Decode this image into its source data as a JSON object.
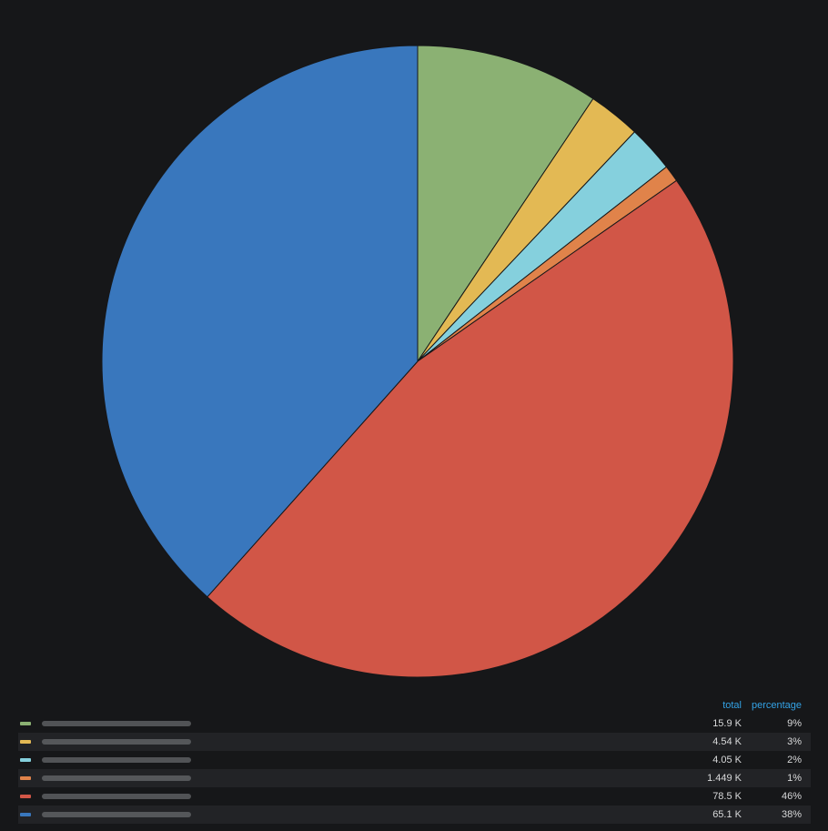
{
  "chart_data": {
    "type": "pie",
    "categories": [
      null,
      null,
      null,
      null,
      null,
      null
    ],
    "values": [
      15900,
      4540,
      4050,
      1449,
      78500,
      65100
    ],
    "value_labels": [
      "15.9 K",
      "4.54 K",
      "4.05 K",
      "1.449 K",
      "78.5 K",
      "65.1 K"
    ],
    "percentages": [
      {
        "value": 9,
        "label": "9%"
      },
      {
        "value": 3,
        "label": "3%"
      },
      {
        "value": 2,
        "label": "2%"
      },
      {
        "value": 1,
        "label": "1%"
      },
      {
        "value": 46,
        "label": "46%"
      },
      {
        "value": 38,
        "label": "38%"
      }
    ],
    "colors": [
      "#8bb173",
      "#e3b954",
      "#85d0dd",
      "#e0834a",
      "#d15647",
      "#3977bd"
    ],
    "legend_columns": [
      "total",
      "percentage"
    ]
  }
}
